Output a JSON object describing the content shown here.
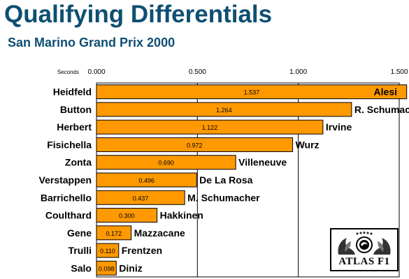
{
  "title": "Qualifying Differentials",
  "subtitle": "San Marino Grand Prix 2000",
  "logo_text": "ATLAS F1",
  "colors": {
    "title": "#0e4f72",
    "bar": "#ff9900",
    "bar_stroke": "#000000",
    "grid": "#000000"
  },
  "chart_data": {
    "type": "bar",
    "orientation": "horizontal",
    "xlabel": "Seconds",
    "xlim": [
      0,
      1.5
    ],
    "x_ticks": [
      "0.000",
      "0.500",
      "1.000",
      "1.500"
    ],
    "x_tick_values": [
      0,
      0.5,
      1.0,
      1.5
    ],
    "grid": true,
    "categories": [
      "Heidfeld",
      "Button",
      "Herbert",
      "Fisichella",
      "Zonta",
      "Verstappen",
      "Barrichello",
      "Coulthard",
      "Gene",
      "Trulli",
      "Salo"
    ],
    "values": [
      1.537,
      1.264,
      1.122,
      0.972,
      0.69,
      0.496,
      0.437,
      0.3,
      0.172,
      0.11,
      0.098
    ],
    "value_labels": [
      "1.537",
      "1.264",
      "1.122",
      "0.972",
      "0.690",
      "0.496",
      "0.437",
      "0.300",
      "0.172",
      "0.110",
      "0.098"
    ],
    "end_labels": [
      "Alesi",
      "R. Schumacher",
      "Irvine",
      "Wurz",
      "Villeneuve",
      "De La Rosa",
      "M. Schumacher",
      "Hakkinen",
      "Mazzacane",
      "Frentzen",
      "Diniz"
    ]
  }
}
